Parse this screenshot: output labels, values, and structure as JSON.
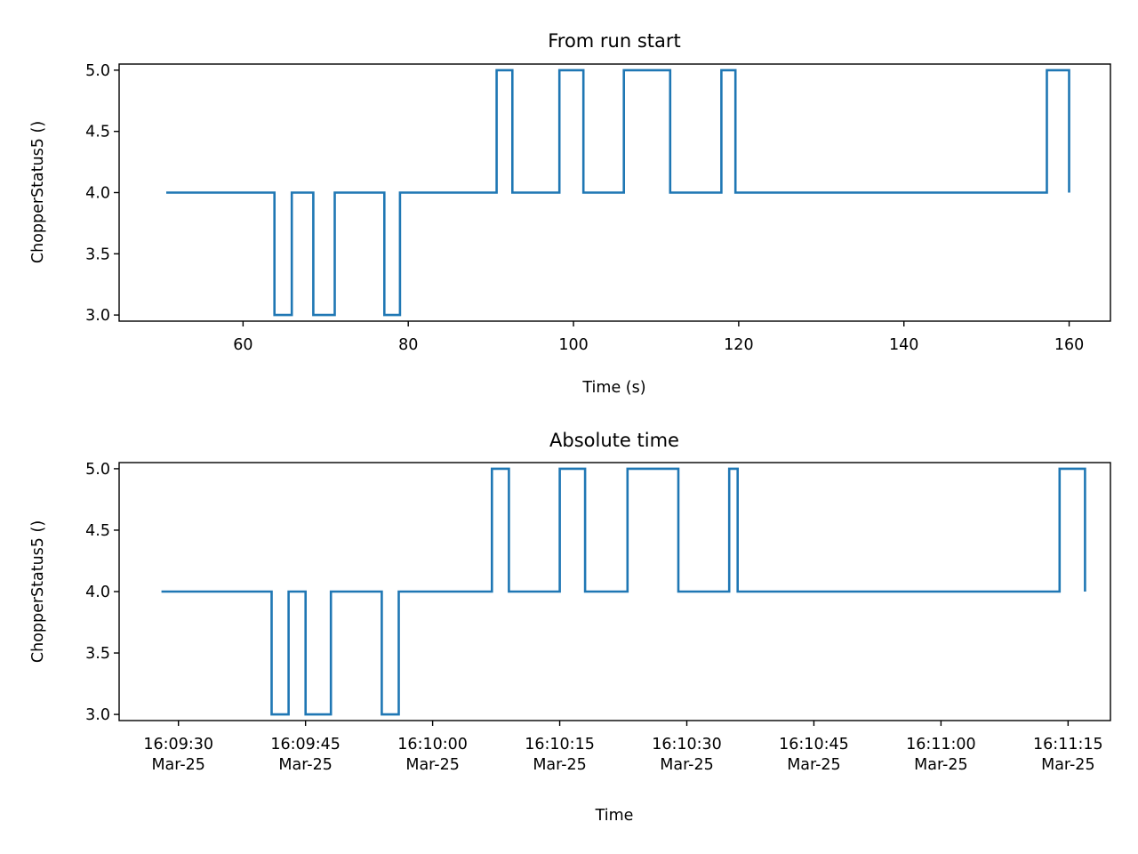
{
  "chart_data": [
    {
      "type": "line",
      "title": "From run start",
      "xlabel": "Time (s)",
      "ylabel": "ChopperStatus5 ()",
      "xlim": [
        45,
        165
      ],
      "ylim": [
        2.95,
        5.05
      ],
      "xticks": [
        60,
        80,
        100,
        120,
        140,
        160
      ],
      "xtick_labels": [
        "60",
        "80",
        "100",
        "120",
        "140",
        "160"
      ],
      "yticks": [
        3.0,
        3.5,
        4.0,
        4.5,
        5.0
      ],
      "ytick_labels": [
        "3.0",
        "3.5",
        "4.0",
        "4.5",
        "5.0"
      ],
      "grid": false,
      "step": "post",
      "series": [
        {
          "color": "#1f77b4",
          "x": [
            50.7,
            63.8,
            65.9,
            68.5,
            71.1,
            77.1,
            79.0,
            90.7,
            92.6,
            98.3,
            101.2,
            106.1,
            111.7,
            117.9,
            119.6,
            157.3,
            160.0
          ],
          "y": [
            4,
            3,
            4,
            3,
            4,
            3,
            4,
            5,
            4,
            5,
            4,
            5,
            4,
            5,
            4,
            5,
            4
          ]
        }
      ]
    },
    {
      "type": "line",
      "title": "Absolute time",
      "xlabel": "Time",
      "ylabel": "ChopperStatus5 ()",
      "xlim": [
        "2025-03-25 16:09:23",
        "2025-03-25 16:11:20"
      ],
      "ylim": [
        2.95,
        5.05
      ],
      "xticks": [
        "16:09:30",
        "16:09:45",
        "16:10:00",
        "16:10:15",
        "16:10:30",
        "16:10:45",
        "16:11:00",
        "16:11:15"
      ],
      "xtick_labels": [
        [
          "16:09:30",
          "Mar-25"
        ],
        [
          "16:09:45",
          "Mar-25"
        ],
        [
          "16:10:00",
          "Mar-25"
        ],
        [
          "16:10:15",
          "Mar-25"
        ],
        [
          "16:10:30",
          "Mar-25"
        ],
        [
          "16:10:45",
          "Mar-25"
        ],
        [
          "16:11:00",
          "Mar-25"
        ],
        [
          "16:11:15",
          "Mar-25"
        ]
      ],
      "yticks": [
        3.0,
        3.5,
        4.0,
        4.5,
        5.0
      ],
      "ytick_labels": [
        "3.0",
        "3.5",
        "4.0",
        "4.5",
        "5.0"
      ],
      "grid": false,
      "step": "post",
      "series": [
        {
          "color": "#1f77b4",
          "x": [
            "16:09:28",
            "16:09:41",
            "16:09:43",
            "16:09:45",
            "16:09:48",
            "16:09:54",
            "16:09:56",
            "16:10:07",
            "16:10:09",
            "16:10:15",
            "16:10:18",
            "16:10:23",
            "16:10:29",
            "16:10:35",
            "16:10:36",
            "16:11:14",
            "16:11:17"
          ],
          "y": [
            4,
            3,
            4,
            3,
            4,
            3,
            4,
            5,
            4,
            5,
            4,
            5,
            4,
            5,
            4,
            5,
            4
          ]
        }
      ]
    }
  ]
}
